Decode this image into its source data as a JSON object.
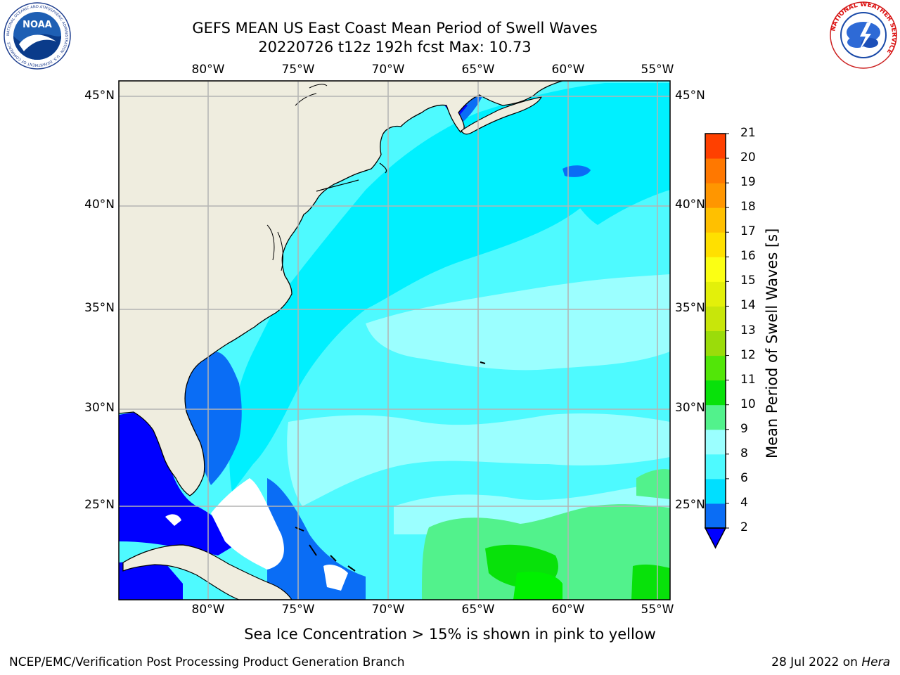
{
  "title": {
    "line1": "GEFS MEAN US East Coast Mean Period of Swell Waves",
    "line2": "20220726 t12z 192h fcst   Max: 10.73"
  },
  "logos": {
    "left": {
      "name": "noaa-logo",
      "text": "NOAA",
      "ring_text": "NATIONAL OCEANIC AND ATMOSPHERIC ADMINISTRATION · U.S. DEPARTMENT OF COMMERCE"
    },
    "right": {
      "name": "national-weather-service-logo",
      "ring_text": "NATIONAL WEATHER SERVICE"
    }
  },
  "map": {
    "lon_labels": [
      "80°W",
      "75°W",
      "70°W",
      "65°W",
      "60°W",
      "55°W"
    ],
    "lat_labels": [
      "45°N",
      "40°N",
      "35°N",
      "30°N",
      "25°N"
    ],
    "lon_extent": [
      -85,
      -54
    ],
    "lat_extent": [
      20.5,
      46
    ],
    "grid": true,
    "colors": {
      "land": "#efeddf",
      "grid": "#b4b4b4",
      "coast": "#000000",
      "no_data": "#ffffff"
    }
  },
  "colorbar": {
    "title": "Mean Period of Swell Waves [s]",
    "ticks": [
      "2",
      "4",
      "6",
      "8",
      "9",
      "10",
      "11",
      "12",
      "13",
      "14",
      "15",
      "16",
      "17",
      "18",
      "19",
      "20",
      "21"
    ],
    "colors": [
      "#0a6df5",
      "#00dfff",
      "#4efaff",
      "#9bffff",
      "#52f28c",
      "#08e10a",
      "#52e608",
      "#9bdc0a",
      "#c8e60a",
      "#e3f00a",
      "#fbff14",
      "#ffe000",
      "#ffc000",
      "#ff9600",
      "#ff7800",
      "#ff4000",
      "#ff0000"
    ],
    "under_color": "#0000ff",
    "extend": "min"
  },
  "note": "Sea Ice Concentration > 15% is shown in pink to yellow",
  "footer": {
    "left": "NCEP/EMC/Verification Post Processing Product Generation Branch",
    "right_date": "28 Jul 2022 on ",
    "right_host": "Hera"
  }
}
